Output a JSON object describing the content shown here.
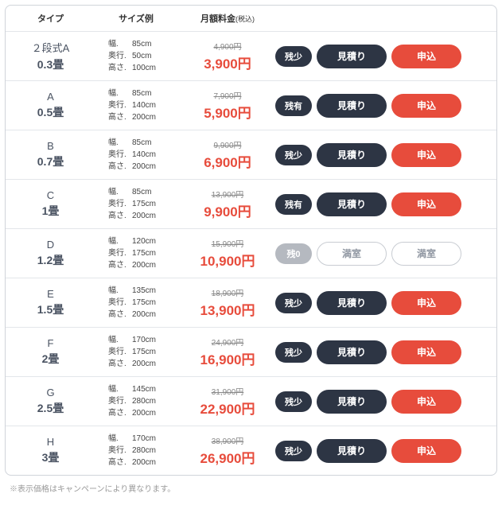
{
  "headers": {
    "type": "タイプ",
    "size": "サイズ例",
    "price": "月額料金",
    "price_tax": "(税込)"
  },
  "dim_labels": {
    "width": "幅.",
    "depth": "奥行.",
    "height": "高さ."
  },
  "buttons": {
    "estimate": "見積り",
    "apply": "申込",
    "full": "満室"
  },
  "badges": {
    "low": "残少",
    "avail": "残有",
    "zero": "残0"
  },
  "footnote": "※表示価格はキャンペーンにより異なります。",
  "rows": [
    {
      "name": "２段式A",
      "tatami": "0.3畳",
      "width": "85cm",
      "depth": "50cm",
      "height": "100cm",
      "old_price": "4,900円",
      "new_price": "3,900円",
      "status": "low",
      "available": true
    },
    {
      "name": "A",
      "tatami": "0.5畳",
      "width": "85cm",
      "depth": "140cm",
      "height": "200cm",
      "old_price": "7,900円",
      "new_price": "5,900円",
      "status": "avail",
      "available": true
    },
    {
      "name": "B",
      "tatami": "0.7畳",
      "width": "85cm",
      "depth": "140cm",
      "height": "200cm",
      "old_price": "9,900円",
      "new_price": "6,900円",
      "status": "low",
      "available": true
    },
    {
      "name": "C",
      "tatami": "1畳",
      "width": "85cm",
      "depth": "175cm",
      "height": "200cm",
      "old_price": "13,900円",
      "new_price": "9,900円",
      "status": "avail",
      "available": true
    },
    {
      "name": "D",
      "tatami": "1.2畳",
      "width": "120cm",
      "depth": "175cm",
      "height": "200cm",
      "old_price": "15,900円",
      "new_price": "10,900円",
      "status": "zero",
      "available": false
    },
    {
      "name": "E",
      "tatami": "1.5畳",
      "width": "135cm",
      "depth": "175cm",
      "height": "200cm",
      "old_price": "18,900円",
      "new_price": "13,900円",
      "status": "low",
      "available": true
    },
    {
      "name": "F",
      "tatami": "2畳",
      "width": "170cm",
      "depth": "175cm",
      "height": "200cm",
      "old_price": "24,900円",
      "new_price": "16,900円",
      "status": "low",
      "available": true
    },
    {
      "name": "G",
      "tatami": "2.5畳",
      "width": "145cm",
      "depth": "280cm",
      "height": "200cm",
      "old_price": "31,900円",
      "new_price": "22,900円",
      "status": "low",
      "available": true
    },
    {
      "name": "H",
      "tatami": "3畳",
      "width": "170cm",
      "depth": "280cm",
      "height": "200cm",
      "old_price": "38,900円",
      "new_price": "26,900円",
      "status": "low",
      "available": true
    }
  ],
  "colors": {
    "border": "#d0d4da",
    "row_border": "#e3e6ea",
    "text_dark": "#4a5362",
    "price_red": "#e74c3c",
    "old_price": "#888888",
    "badge_dark": "#2d3544",
    "badge_gray": "#b5b9c0",
    "btn_red": "#e74c3c",
    "btn_disabled_border": "#c8ccd2",
    "btn_disabled_text": "#9097a2"
  }
}
